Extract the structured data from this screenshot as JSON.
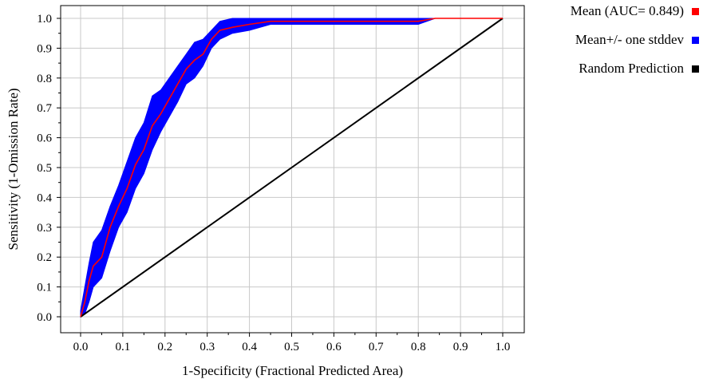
{
  "chart_data": {
    "type": "line",
    "xlabel": "1-Specificity (Fractional Predicted Area)",
    "ylabel": "Sensitivity (1-Omission Rate)",
    "xlim": [
      0,
      1
    ],
    "ylim": [
      0,
      1
    ],
    "xticks": [
      "0.0",
      "0.1",
      "0.2",
      "0.3",
      "0.4",
      "0.5",
      "0.6",
      "0.7",
      "0.8",
      "0.9",
      "1.0"
    ],
    "yticks": [
      "0.0",
      "0.1",
      "0.2",
      "0.3",
      "0.4",
      "0.5",
      "0.6",
      "0.7",
      "0.8",
      "0.9",
      "1.0"
    ],
    "grid": true,
    "legend_position": "right",
    "series": [
      {
        "name": "Mean (AUC= 0.849)",
        "color": "#ff0000",
        "x": [
          0.0,
          0.01,
          0.02,
          0.03,
          0.05,
          0.07,
          0.09,
          0.11,
          0.13,
          0.15,
          0.17,
          0.19,
          0.21,
          0.23,
          0.25,
          0.27,
          0.29,
          0.31,
          0.33,
          0.36,
          0.4,
          0.45,
          0.5,
          0.6,
          0.7,
          0.8,
          0.84,
          0.9,
          1.0
        ],
        "y": [
          0.0,
          0.05,
          0.12,
          0.17,
          0.2,
          0.3,
          0.37,
          0.43,
          0.51,
          0.56,
          0.64,
          0.68,
          0.73,
          0.78,
          0.83,
          0.86,
          0.88,
          0.93,
          0.96,
          0.97,
          0.98,
          0.99,
          0.99,
          0.99,
          0.99,
          0.99,
          1.0,
          1.0,
          1.0
        ]
      },
      {
        "name": "Mean+/- one stddev",
        "color": "#0000ff",
        "x": [
          0.0,
          0.01,
          0.02,
          0.03,
          0.05,
          0.07,
          0.09,
          0.11,
          0.13,
          0.15,
          0.17,
          0.19,
          0.21,
          0.23,
          0.25,
          0.27,
          0.29,
          0.31,
          0.33,
          0.36,
          0.4,
          0.45,
          0.5,
          0.6,
          0.7,
          0.8,
          0.84,
          0.9,
          1.0
        ],
        "lower": [
          0.0,
          0.01,
          0.05,
          0.1,
          0.13,
          0.22,
          0.3,
          0.35,
          0.43,
          0.48,
          0.56,
          0.62,
          0.67,
          0.72,
          0.78,
          0.8,
          0.84,
          0.9,
          0.93,
          0.95,
          0.96,
          0.98,
          0.98,
          0.98,
          0.98,
          0.98,
          1.0,
          1.0,
          1.0
        ],
        "upper": [
          0.02,
          0.1,
          0.18,
          0.25,
          0.29,
          0.37,
          0.44,
          0.52,
          0.6,
          0.65,
          0.74,
          0.76,
          0.8,
          0.84,
          0.88,
          0.92,
          0.93,
          0.96,
          0.99,
          1.0,
          1.0,
          1.0,
          1.0,
          1.0,
          1.0,
          1.0,
          1.0,
          1.0,
          1.0
        ]
      },
      {
        "name": "Random Prediction",
        "color": "#000000",
        "x": [
          0.0,
          1.0
        ],
        "y": [
          0.0,
          1.0
        ]
      }
    ]
  }
}
